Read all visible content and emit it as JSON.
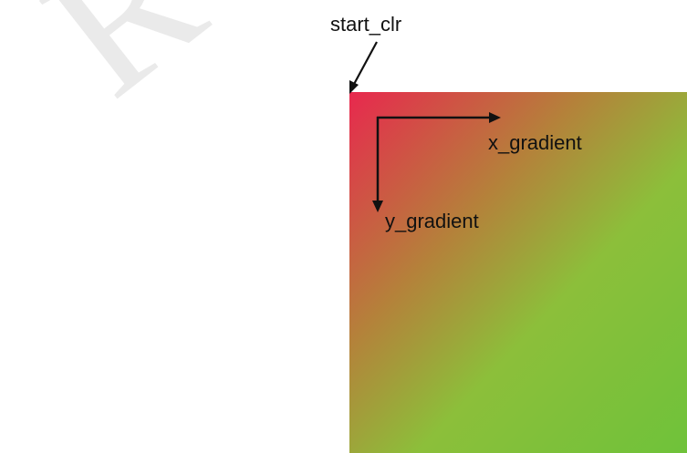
{
  "watermark": {
    "text": "RO T-C"
  },
  "labels": {
    "start": "start_clr",
    "x_gradient": "x_gradient",
    "y_gradient": "y_gradient"
  },
  "colors": {
    "start_clr": "#ee1e4e",
    "gradient_end": "#7fcb3a",
    "arrow": "#111111"
  }
}
